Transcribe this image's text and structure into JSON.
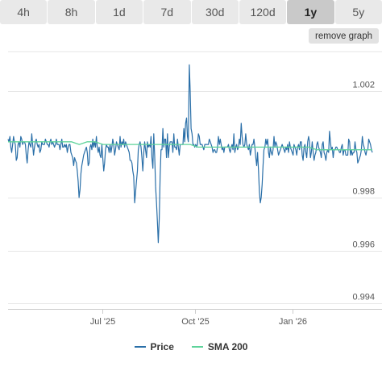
{
  "tabs": [
    {
      "label": "4h",
      "active": false
    },
    {
      "label": "8h",
      "active": false
    },
    {
      "label": "1d",
      "active": false
    },
    {
      "label": "7d",
      "active": false
    },
    {
      "label": "30d",
      "active": false
    },
    {
      "label": "120d",
      "active": false
    },
    {
      "label": "1y",
      "active": true
    },
    {
      "label": "5y",
      "active": false
    }
  ],
  "remove_button": "remove graph",
  "colors": {
    "price": "#2a6fa8",
    "sma": "#5ed39a",
    "grid": "#e6e6e6",
    "axis": "#cccccc"
  },
  "chart_data": {
    "type": "line",
    "x_ticks": [
      "Jul '25",
      "Oct '25",
      "Jan '26"
    ],
    "x_tick_positions": [
      0.258,
      0.513,
      0.78
    ],
    "y_ticks": [
      "1.002",
      "0.998",
      "0.996",
      "0.994"
    ],
    "ylim": [
      0.9938,
      1.0035
    ],
    "legend": [
      "Price",
      "SMA 200"
    ],
    "legend_position": "bottom-center",
    "series": [
      {
        "name": "Price",
        "values": [
          1.0002,
          1.0001,
          1.0003,
          0.9999,
          0.9997,
          1.0,
          1.0003,
          1.0001,
          1.0,
          0.9994,
          0.9995,
          1.0,
          1.0001,
          0.9999,
          1.0003,
          1.0002,
          1.0,
          1.0001,
          1.0001,
          1.0,
          0.9996,
          0.9993,
          0.9998,
          1.0001,
          1.0,
          0.9999,
          1.0004,
          1.0,
          0.9996,
          0.9999,
          1.0001,
          1.0002,
          1.0,
          0.9999,
          1.0,
          0.9997,
          0.9998,
          1.0001,
          1.0,
          1.0,
          1.0,
          1.0002,
          1.0001,
          1.0,
          1.0,
          0.9999,
          1.0001,
          1.0002,
          1.0,
          1.0001,
          1.0,
          0.9999,
          1.0,
          1.0002,
          1.0,
          1.0,
          1.0,
          0.9998,
          1.0,
          1.0002,
          0.9999,
          0.9999,
          1.0,
          0.9999,
          1.0,
          0.9997,
          0.9999,
          1.0,
          1.0,
          0.9997,
          0.9996,
          0.9995,
          0.9992,
          0.9995,
          0.9994,
          0.9993,
          0.999,
          0.9986,
          0.998,
          0.9983,
          0.9989,
          0.9992,
          0.9994,
          0.9996,
          0.9997,
          0.9998,
          0.9999,
          0.9997,
          0.9992,
          0.9993,
          0.9999,
          1.0,
          0.9998,
          1.0002,
          0.9999,
          1.0001,
          0.9999,
          1.0003,
          0.9999,
          0.9997,
          0.9999,
          0.9996,
          0.9995,
          1.0,
          0.9995,
          0.999,
          0.9993,
          0.9998,
          1.0,
          0.9999,
          0.9999,
          0.9997,
          1.0,
          0.9997,
          0.9999,
          1.0002,
          1.0,
          0.9996,
          0.9998,
          1.0001,
          1.0,
          0.9999,
          0.9998,
          1.0003,
          0.9999,
          1.0001,
          1.0,
          1.0002,
          0.9999,
          1.0001,
          1.0,
          0.9999,
          0.9998,
          0.9997,
          0.9994,
          0.9994,
          0.9993,
          0.999,
          0.9988,
          0.9978,
          0.9982,
          0.9986,
          0.999,
          0.9998,
          1.0,
          1.0001,
          0.9999,
          0.9995,
          0.999,
          0.9997,
          1.0001,
          0.9998,
          0.9995,
          1.0001,
          0.9999,
          1.0,
          0.9999,
          1.0003,
          0.9995,
          0.9991,
          1.0004,
          0.9996,
          0.9984,
          0.9978,
          0.9971,
          0.9963,
          0.9972,
          0.9988,
          0.9998,
          0.9998,
          1.0006,
          0.9999,
          1.0002,
          1.0002,
          0.9995,
          1.0004,
          0.9995,
          0.9999,
          1.0001,
          1.0001,
          1.0001,
          0.9997,
          1.0004,
          0.9999,
          0.9999,
          0.9998,
          1.0002,
          0.9999,
          0.9996,
          1.0,
          1.0,
          1.0,
          1.0,
          1.0006,
          1.0001,
          1.0008,
          1.001,
          1.0003,
          1.0001,
          1.003,
          1.002,
          1.0006,
          1.0004,
          1.0,
          1.0,
          0.9999,
          1.0,
          0.9999,
          1.0,
          1.0004,
          1.0003,
          1.0,
          1.0,
          1.0,
          0.9999,
          0.9998,
          1.0,
          1.0,
          1.0,
          1.0,
          1.0,
          1.0002,
          1.0001,
          1.0,
          0.9999,
          0.9997,
          0.9998,
          0.9998,
          0.9997,
          0.9997,
          0.9999,
          1.0003,
          1.0,
          1.0002,
          1.0,
          0.9998,
          0.9999,
          0.9997,
          0.9999,
          0.9999,
          0.9999,
          0.9999,
          1.0,
          0.9998,
          0.9997,
          0.9999,
          1.0,
          0.9998,
          1.0004,
          0.9997,
          0.9999,
          1.0,
          0.9998,
          0.9999,
          1.0002,
          1.0,
          1.0008,
          1.0003,
          1.0,
          0.9999,
          1.0,
          1.0004,
          1.0,
          0.9999,
          0.9998,
          1.0,
          0.9996,
          0.9998,
          1.0,
          1.0,
          1.0002,
          0.9999,
          0.9995,
          0.9992,
          0.9997,
          0.999,
          0.9982,
          0.9978,
          0.998,
          0.9985,
          0.9992,
          0.9998,
          0.9999,
          1.0002,
          1.0,
          1.0002,
          0.9997,
          0.9995,
          0.9999,
          0.9997,
          0.9996,
          0.9998,
          1.0003,
          0.9999,
          1.0001,
          1.0,
          0.9998,
          0.9996,
          0.9997,
          0.9998,
          0.9999,
          1.0,
          0.9999,
          0.9998,
          0.9997,
          0.9999,
          0.9998,
          1.0,
          0.9997,
          1.0001,
          0.9999,
          0.9998,
          0.9997,
          0.9996,
          1.0,
          0.9999,
          0.9998,
          0.9996,
          0.9999,
          1.0,
          0.9998,
          1.0001,
          1.0001,
          0.9996,
          0.9994,
          0.9999,
          1.0,
          0.9997,
          0.9995,
          1.0001,
          1.0003,
          1.0001,
          0.9995,
          0.9997,
          1.0001,
          0.9997,
          0.9994,
          0.9996,
          0.9997,
          1.0,
          1.0001,
          0.9999,
          0.9998,
          0.9997,
          0.9995,
          1.0,
          1.0001,
          0.9997,
          0.9996,
          0.9994,
          0.9997,
          0.9998,
          0.9997,
          1.0005,
          1.0001,
          0.9998,
          0.9999,
          0.9995,
          0.9998,
          0.9998,
          0.9999,
          0.9999,
          0.9998,
          0.9998,
          0.9997,
          0.9997,
          0.9999,
          1.0,
          0.9996,
          0.9998,
          0.9998,
          0.9996,
          0.9996,
          0.9996,
          1.0002,
          1.0001,
          0.9996,
          0.9998,
          0.9996,
          0.9997,
          0.9997,
          1.0001,
          0.9998,
          0.9997,
          0.9993,
          0.9994,
          0.9995,
          0.9996,
          0.9998,
          1.0003,
          1.0,
          0.9999,
          0.9997,
          0.9996,
          0.9998,
          0.9998,
          1.0002,
          1.0001,
          1.0,
          0.9998,
          0.9997
        ]
      },
      {
        "name": "SMA 200",
        "x_start": 0.0,
        "values": [
          1.0001,
          1.0001,
          1.0001,
          1.0001,
          1.0001,
          1.0001,
          1.0001,
          1.0001,
          1.0001,
          1.0,
          1.0001,
          1.0001,
          1.0,
          1.0,
          1.0,
          1.0,
          1.0,
          1.0,
          1.0,
          1.0,
          1.0,
          1.0,
          1.0,
          1.0,
          0.9999,
          0.9999,
          0.9999,
          0.9999,
          0.9999,
          0.9999,
          0.9999,
          0.9999,
          0.9999,
          0.9999,
          0.9999,
          0.9999,
          0.9999,
          0.9999,
          0.9999,
          0.9998,
          0.9998,
          0.9998,
          0.9998,
          0.9998,
          0.9998,
          0.9998,
          0.9998
        ]
      }
    ]
  }
}
